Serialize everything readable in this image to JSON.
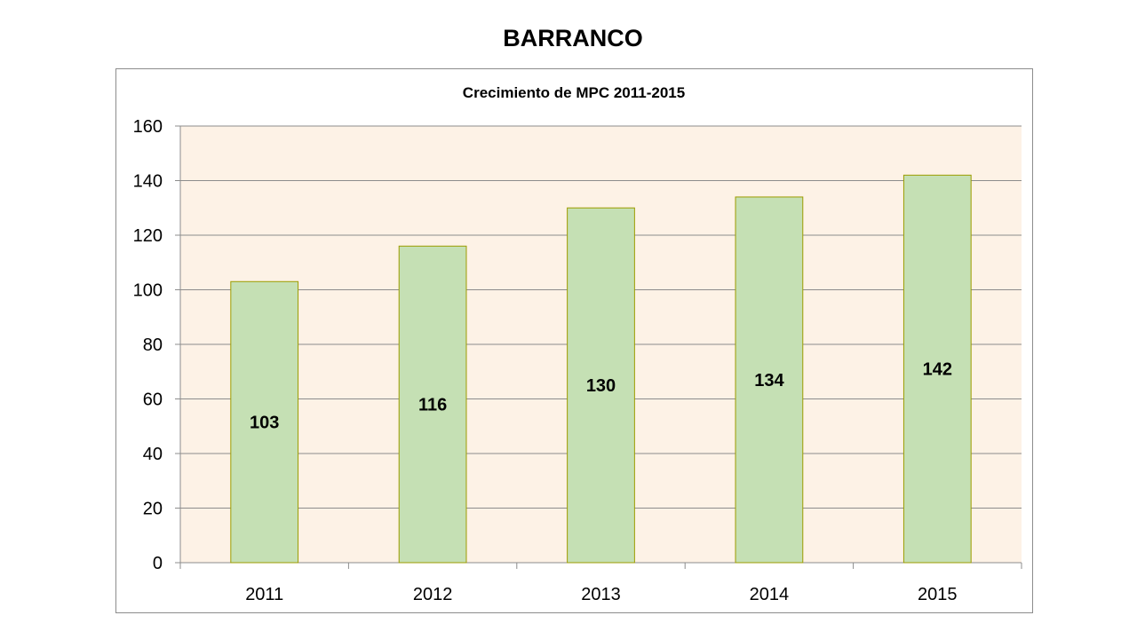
{
  "slide": {
    "title": "BARRANCO"
  },
  "chart_data": {
    "type": "bar",
    "title": "Crecimiento de MPC 2011-2015",
    "xlabel": "",
    "ylabel": "",
    "categories": [
      "2011",
      "2012",
      "2013",
      "2014",
      "2015"
    ],
    "series": [
      {
        "values": [
          103,
          116,
          130,
          134,
          142
        ]
      }
    ],
    "ylim": [
      0,
      160
    ],
    "yticks": [
      0,
      20,
      40,
      60,
      80,
      100,
      120,
      140,
      160
    ],
    "grid": true,
    "legend": "none",
    "data_labels": true,
    "colors": {
      "bar_fill": "#c5e0b4",
      "bar_stroke": "#9c9c00",
      "plot_background": "#fdf2e6",
      "gridline": "#8c8c8c"
    }
  }
}
